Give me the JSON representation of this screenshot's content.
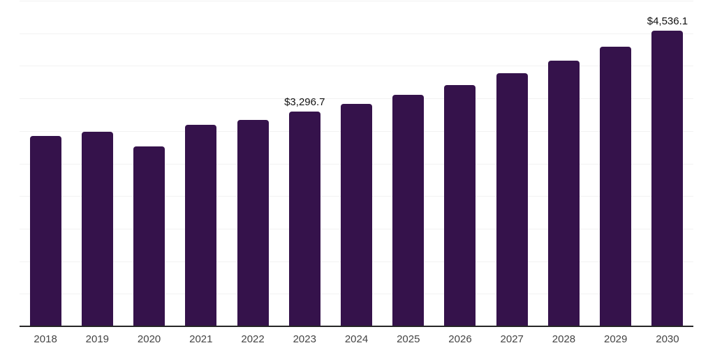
{
  "chart_data": {
    "type": "bar",
    "title": "",
    "xlabel": "",
    "ylabel": "",
    "ylim": [
      0,
      5000
    ],
    "gridline_step": 500,
    "grid": "horizontal-only",
    "legend": "none",
    "y_tick_labels_visible": false,
    "categories": [
      "2018",
      "2019",
      "2020",
      "2021",
      "2022",
      "2023",
      "2024",
      "2025",
      "2026",
      "2027",
      "2028",
      "2029",
      "2030"
    ],
    "values": [
      2920,
      2990,
      2760,
      3090,
      3170,
      3296.7,
      3420,
      3560,
      3710,
      3890,
      4080,
      4290,
      4536.1
    ],
    "points": [
      {
        "year": "2018",
        "value": 2920,
        "label": null
      },
      {
        "year": "2019",
        "value": 2990,
        "label": null
      },
      {
        "year": "2020",
        "value": 2760,
        "label": null
      },
      {
        "year": "2021",
        "value": 3090,
        "label": null
      },
      {
        "year": "2022",
        "value": 3170,
        "label": null
      },
      {
        "year": "2023",
        "value": 3296.7,
        "label": "$3,296.7"
      },
      {
        "year": "2024",
        "value": 3420,
        "label": null
      },
      {
        "year": "2025",
        "value": 3560,
        "label": null
      },
      {
        "year": "2026",
        "value": 3710,
        "label": null
      },
      {
        "year": "2027",
        "value": 3890,
        "label": null
      },
      {
        "year": "2028",
        "value": 4080,
        "label": null
      },
      {
        "year": "2029",
        "value": 4290,
        "label": null
      },
      {
        "year": "2030",
        "value": 4536.1,
        "label": "$4,536.1"
      }
    ],
    "colors": {
      "bar": "#35124B",
      "gridline": "#F2F2F2",
      "axis_line": "#262626",
      "data_label": "#111111",
      "x_tick_label": "#444444",
      "background": "#FFFFFF"
    }
  }
}
